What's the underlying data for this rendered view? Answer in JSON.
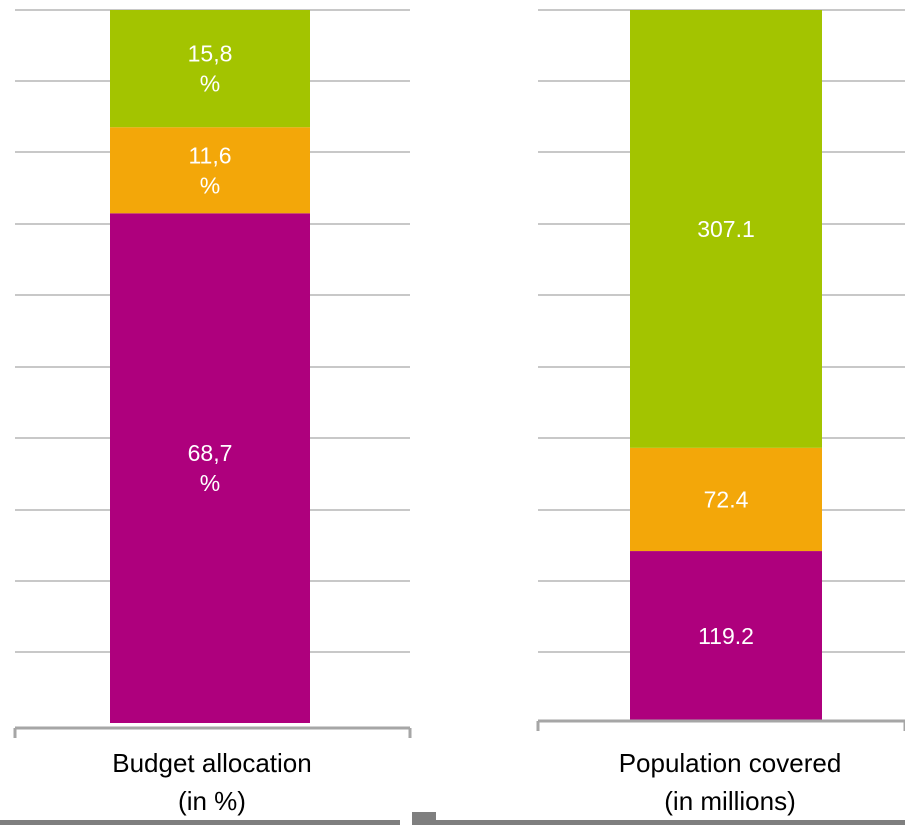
{
  "colors": {
    "magenta": "#ae007d",
    "orange": "#f3a709",
    "green": "#a3c400",
    "gridline": "#a6a6a6",
    "axis": "#a6a6a6",
    "bottom_bar": "#7f7f7f"
  },
  "chart_data": [
    {
      "type": "bar",
      "stacked": true,
      "category_lines": [
        "Budget allocation",
        "(in %)"
      ],
      "series": [
        {
          "value": 68.7,
          "label_lines": [
            "68,7",
            "%"
          ],
          "color": "#ae007d"
        },
        {
          "value": 11.6,
          "label_lines": [
            "11,6",
            "%"
          ],
          "color": "#f3a709"
        },
        {
          "value": 15.8,
          "label_lines": [
            "15,8",
            "%"
          ],
          "color": "#a3c400"
        }
      ],
      "ylim": [
        0,
        96.1
      ],
      "grid": true
    },
    {
      "type": "bar",
      "stacked": true,
      "category_lines": [
        "Population covered",
        "(in millions)"
      ],
      "series": [
        {
          "value": 119.2,
          "label_lines": [
            "119.2"
          ],
          "color": "#ae007d"
        },
        {
          "value": 72.4,
          "label_lines": [
            "72.4"
          ],
          "color": "#f3a709"
        },
        {
          "value": 307.1,
          "label_lines": [
            "307.1"
          ],
          "color": "#a3c400"
        }
      ],
      "ylim": [
        0,
        498.7
      ],
      "grid": true
    }
  ]
}
